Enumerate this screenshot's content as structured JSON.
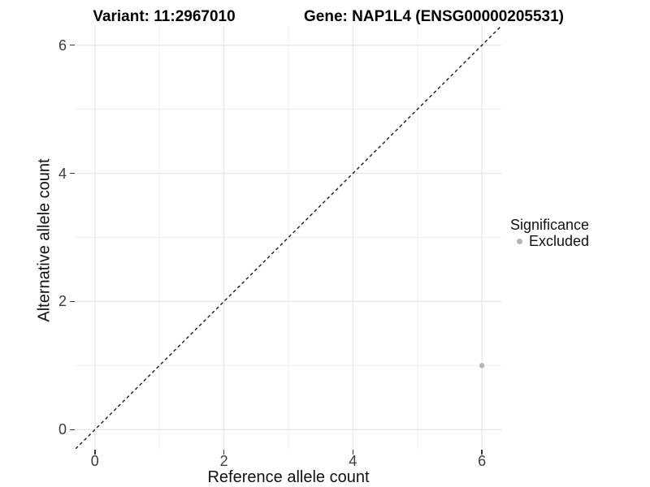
{
  "chart_data": {
    "type": "scatter",
    "titles": {
      "variant": "Variant: 11:2967010",
      "gene": "Gene: NAP1L4 (ENSG00000205531)"
    },
    "xlabel": "Reference allele count",
    "ylabel": "Alternative allele count",
    "xlim": [
      -0.3,
      6.3
    ],
    "ylim": [
      -0.3,
      6.3
    ],
    "x_ticks": [
      0,
      2,
      4,
      6
    ],
    "y_ticks": [
      0,
      2,
      4,
      6
    ],
    "x_minor_ticks": [
      1,
      3,
      5
    ],
    "y_minor_ticks": [
      1,
      3,
      5
    ],
    "grid": true,
    "identity_line": {
      "slope": 1,
      "intercept": 0,
      "style": "dashed",
      "color": "#1a1a1a"
    },
    "points": [
      {
        "x": 6,
        "y": 1,
        "series": "Excluded"
      }
    ],
    "legend": {
      "title": "Significance",
      "position": "right",
      "items": [
        {
          "label": "Excluded",
          "color": "#b5b5b5"
        }
      ]
    },
    "colors": {
      "background": "#ffffff",
      "grid_major": "#e7e7e7",
      "grid_minor": "#f1f1f1",
      "axis_line": "#383838",
      "tick_label": "#3d3d3d"
    }
  }
}
